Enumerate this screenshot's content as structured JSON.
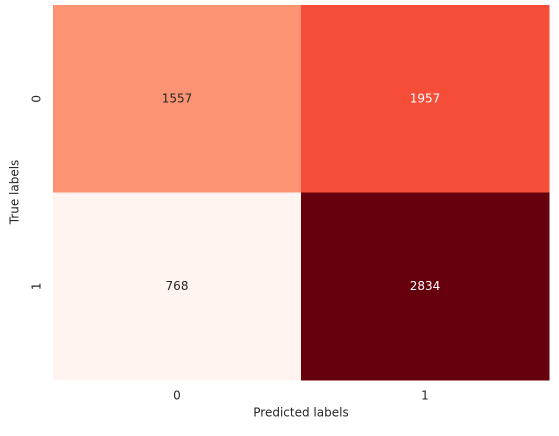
{
  "chart_data": {
    "type": "heatmap",
    "x_label": "Predicted labels",
    "y_label": "True labels",
    "columns": [
      "0",
      "1"
    ],
    "rows": [
      "0",
      "1"
    ],
    "values": [
      [
        1557,
        1957
      ],
      [
        768,
        2834
      ]
    ],
    "colors": [
      [
        "#fc9474",
        "#f64d38"
      ],
      [
        "#fff4ef",
        "#67000d"
      ]
    ],
    "text_colors": [
      [
        "#262626",
        "#ffffff"
      ],
      [
        "#262626",
        "#ffffff"
      ]
    ]
  }
}
